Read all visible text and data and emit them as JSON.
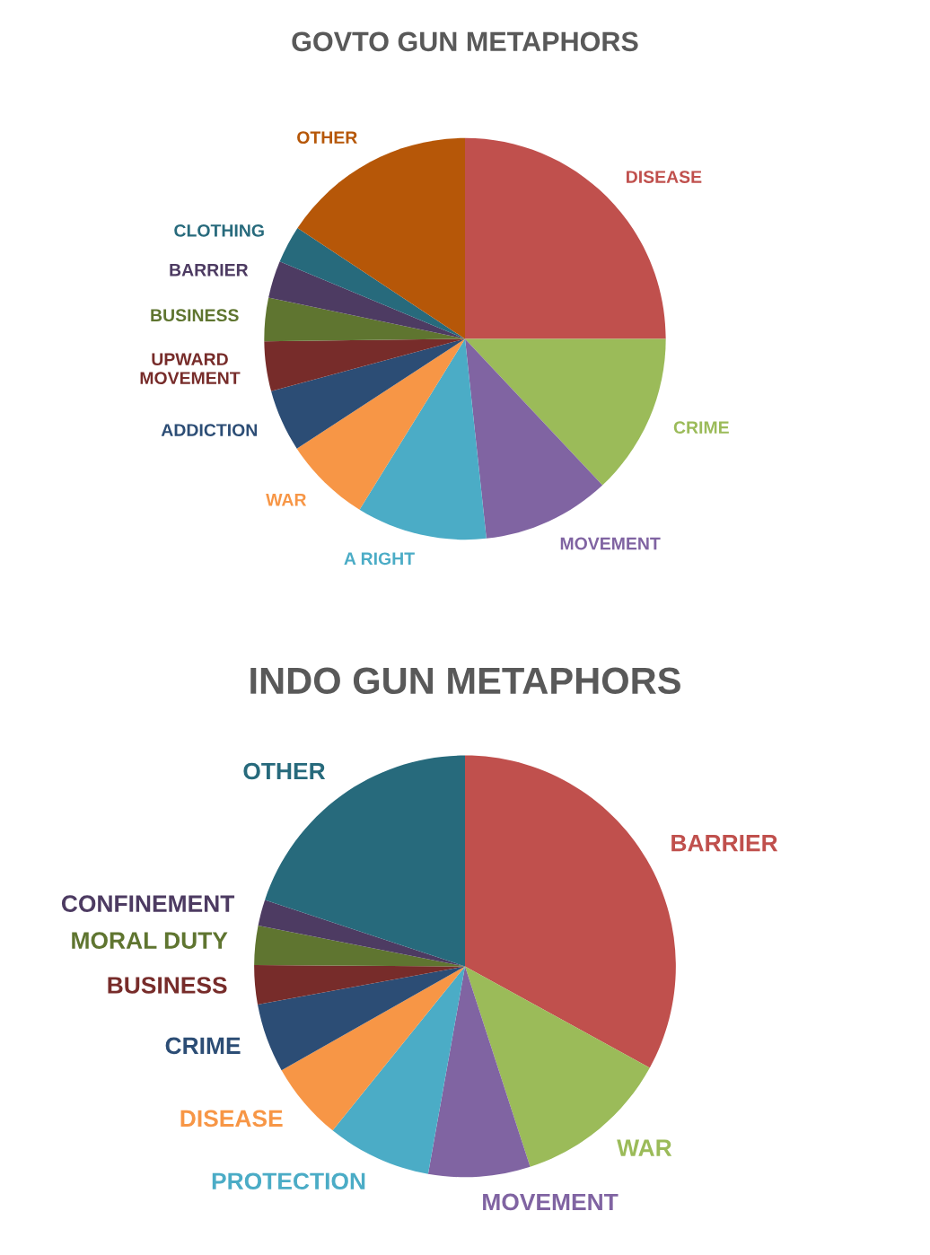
{
  "chart_data": [
    {
      "type": "pie",
      "title": "GOVTO GUN METAPHORS",
      "categories": [
        "DISEASE",
        "CRIME",
        "MOVEMENT",
        "A RIGHT",
        "WAR",
        "ADDICTION",
        "UPWARD\nMOVEMENT",
        "BUSINESS",
        "BARRIER",
        "CLOTHING",
        "OTHER"
      ],
      "values": [
        25,
        13,
        10.3,
        10.5,
        7,
        5,
        4,
        3.5,
        3,
        3,
        15.7
      ],
      "colors": [
        "#c0504d",
        "#9bbb59",
        "#8064a2",
        "#4bacc6",
        "#f79646",
        "#2c4d75",
        "#772c2a",
        "#5f7530",
        "#4d3b62",
        "#276a7c",
        "#b65708"
      ]
    },
    {
      "type": "pie",
      "title": "INDO GUN METAPHORS",
      "categories": [
        "BARRIER",
        "WAR",
        "MOVEMENT",
        "PROTECTION",
        "DISEASE",
        "CRIME",
        "BUSINESS",
        "MORAL DUTY",
        "CONFINEMENT",
        "OTHER"
      ],
      "values": [
        33,
        12,
        7.8,
        8,
        6,
        5.3,
        3,
        3,
        2,
        19.9
      ],
      "colors": [
        "#c0504d",
        "#9bbb59",
        "#8064a2",
        "#4bacc6",
        "#f79646",
        "#2c4d75",
        "#772c2a",
        "#5f7530",
        "#4d3b62",
        "#276a7c"
      ]
    }
  ]
}
